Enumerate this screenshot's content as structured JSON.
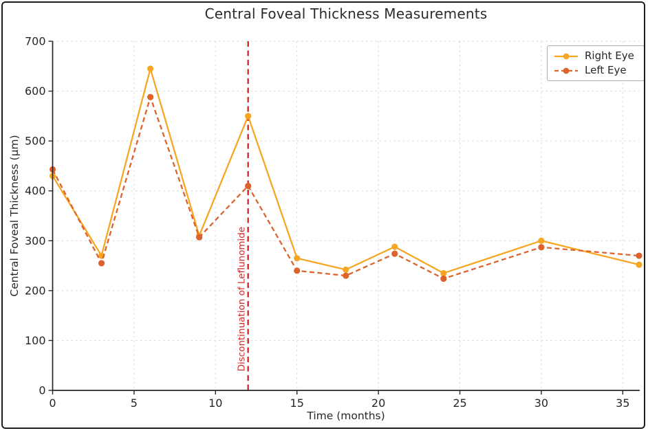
{
  "figure": {
    "border_color": "#1c1c1c",
    "background": "#ffffff"
  },
  "chart_data": {
    "type": "line",
    "title": "Central Foveal Thickness Measurements",
    "xlabel": "Time (months)",
    "ylabel": "Central Foveal Thickness (μm)",
    "x": [
      0,
      3,
      6,
      9,
      12,
      15,
      18,
      21,
      24,
      30,
      36
    ],
    "series": [
      {
        "name": "Right Eye",
        "color": "#F6A623",
        "line_style": "solid",
        "marker": "circle",
        "values": [
          430,
          270,
          645,
          310,
          550,
          265,
          242,
          288,
          235,
          300,
          252
        ]
      },
      {
        "name": "Left Eye",
        "color": "#DD622C",
        "line_style": "dashed",
        "marker": "circle",
        "values": [
          443,
          255,
          588,
          307,
          410,
          240,
          230,
          274,
          224,
          287,
          270
        ]
      }
    ],
    "xlim": [
      0,
      36
    ],
    "ylim": [
      0,
      700
    ],
    "xticks": [
      0,
      5,
      10,
      15,
      20,
      25,
      30,
      35
    ],
    "yticks": [
      0,
      100,
      200,
      300,
      400,
      500,
      600,
      700
    ],
    "grid": true,
    "grid_color": "#d6d6d6",
    "axis_color": "#262626",
    "legend_position": "upper right",
    "annotation": {
      "text": "Discontinuation of Leflunomide",
      "x": 12,
      "color": "#D62728",
      "line_style": "dashed"
    }
  }
}
